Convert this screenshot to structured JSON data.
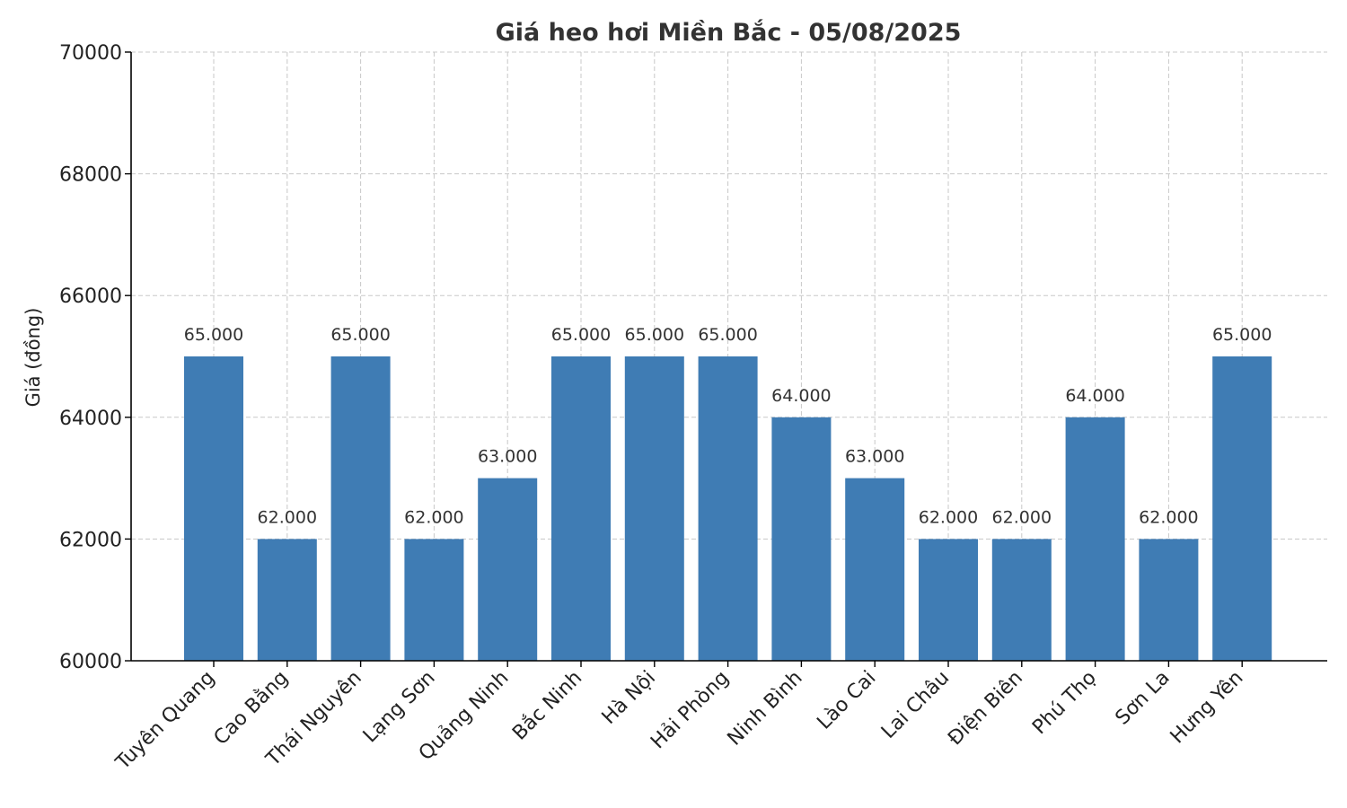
{
  "chart_data": {
    "type": "bar",
    "title": "Giá heo hơi Miền Bắc - 05/08/2025",
    "xlabel": "",
    "ylabel": "Giá (đồng)",
    "ylim": [
      60000,
      70000
    ],
    "yticks": [
      "60000",
      "62000",
      "64000",
      "66000",
      "68000",
      "70000"
    ],
    "grid": true,
    "bar_color": "#3f7cb4",
    "categories": [
      "Tuyên Quang",
      "Cao Bằng",
      "Thái Nguyên",
      "Lạng Sơn",
      "Quảng Ninh",
      "Bắc Ninh",
      "Hà Nội",
      "Hải Phòng",
      "Ninh Bình",
      "Lào Cai",
      "Lai Châu",
      "Điện Biên",
      "Phú Thọ",
      "Sơn La",
      "Hưng Yên"
    ],
    "values": [
      65000,
      62000,
      65000,
      62000,
      63000,
      65000,
      65000,
      65000,
      64000,
      63000,
      62000,
      62000,
      64000,
      62000,
      65000
    ],
    "value_labels": [
      "65.000",
      "62.000",
      "65.000",
      "62.000",
      "63.000",
      "65.000",
      "65.000",
      "65.000",
      "64.000",
      "63.000",
      "62.000",
      "62.000",
      "64.000",
      "62.000",
      "65.000"
    ]
  }
}
